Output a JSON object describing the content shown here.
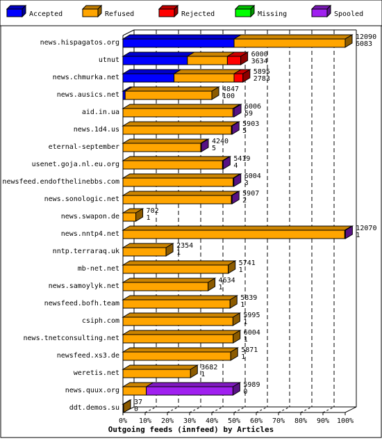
{
  "chart_data": {
    "type": "bar",
    "orientation": "horizontal",
    "stacked": true,
    "style": "3d",
    "xlabel": "Outgoing feeds (innfeed) by Articles",
    "xlim": [
      0,
      100
    ],
    "x_ticks": [
      "0%",
      "10%",
      "20%",
      "30%",
      "40%",
      "50%",
      "60%",
      "70%",
      "80%",
      "90%",
      "100%"
    ],
    "grid": true,
    "legend_position": "top",
    "series": [
      {
        "name": "Accepted",
        "color": "#0000ff"
      },
      {
        "name": "Refused",
        "color": "#ffa500"
      },
      {
        "name": "Rejected",
        "color": "#ff0000"
      },
      {
        "name": "Missing",
        "color": "#00ff00"
      },
      {
        "name": "Spooled",
        "color": "#a020f0"
      }
    ],
    "rows": [
      {
        "label": "news.hispagatos.org",
        "total": "12090",
        "second": "6083",
        "segments": [
          50,
          50,
          0,
          0,
          0
        ]
      },
      {
        "label": "utnut",
        "total": "6000",
        "second": "3634",
        "segments": [
          29,
          18,
          6,
          0,
          0
        ]
      },
      {
        "label": "news.chmurka.net",
        "total": "5895",
        "second": "2783",
        "segments": [
          23,
          27,
          4,
          0,
          0
        ]
      },
      {
        "label": "news.ausics.net",
        "total": "4847",
        "second": "100",
        "segments": [
          1,
          39,
          0,
          0,
          0
        ]
      },
      {
        "label": "aid.in.ua",
        "total": "6006",
        "second": "59",
        "segments": [
          0,
          49.5,
          0,
          0,
          0.5
        ]
      },
      {
        "label": "news.1d4.us",
        "total": "5903",
        "second": "5",
        "segments": [
          0,
          48.8,
          0,
          0,
          0.2
        ]
      },
      {
        "label": "eternal-september",
        "total": "4240",
        "second": "5",
        "segments": [
          0,
          35,
          0,
          0,
          0.2
        ]
      },
      {
        "label": "usenet.goja.nl.eu.org",
        "total": "5419",
        "second": "4",
        "segments": [
          0,
          44.8,
          0,
          0,
          0.2
        ]
      },
      {
        "label": "newsfeed.endofthelinebbs.com",
        "total": "6004",
        "second": "3",
        "segments": [
          0,
          49.6,
          0,
          0,
          0.1
        ]
      },
      {
        "label": "news.sonologic.net",
        "total": "5907",
        "second": "2",
        "segments": [
          0,
          48.8,
          0,
          0,
          0.1
        ]
      },
      {
        "label": "news.swapon.de",
        "total": "702",
        "second": "1",
        "segments": [
          0,
          5.8,
          0,
          0,
          0
        ]
      },
      {
        "label": "news.nntp4.net",
        "total": "12070",
        "second": "1",
        "segments": [
          0,
          99.8,
          0,
          0,
          0.1
        ]
      },
      {
        "label": "nntp.terraraq.uk",
        "total": "2354",
        "second": "1",
        "segments": [
          0,
          19.4,
          0,
          0,
          0
        ]
      },
      {
        "label": "mb-net.net",
        "total": "5741",
        "second": "1",
        "segments": [
          0,
          47.4,
          0,
          0,
          0
        ]
      },
      {
        "label": "news.samoylyk.net",
        "total": "4634",
        "second": "1",
        "segments": [
          0,
          38.3,
          0,
          0,
          0
        ]
      },
      {
        "label": "newsfeed.bofh.team",
        "total": "5839",
        "second": "1",
        "segments": [
          0,
          48.2,
          0,
          0,
          0
        ]
      },
      {
        "label": "csiph.com",
        "total": "5995",
        "second": "1",
        "segments": [
          0,
          49.5,
          0,
          0,
          0
        ]
      },
      {
        "label": "news.tnetconsulting.net",
        "total": "6004",
        "second": "1",
        "segments": [
          0,
          49.6,
          0,
          0,
          0
        ]
      },
      {
        "label": "newsfeed.xs3.de",
        "total": "5871",
        "second": "1",
        "segments": [
          0,
          48.5,
          0,
          0,
          0
        ]
      },
      {
        "label": "weretis.net",
        "total": "3682",
        "second": "1",
        "segments": [
          0,
          30.4,
          0,
          0,
          0
        ]
      },
      {
        "label": "news.quux.org",
        "total": "5989",
        "second": "0",
        "segments": [
          0,
          10.5,
          0,
          0,
          39
        ]
      },
      {
        "label": "ddt.demos.su",
        "total": "37",
        "second": "0",
        "segments": [
          0,
          0.3,
          0,
          0,
          0
        ]
      }
    ]
  }
}
